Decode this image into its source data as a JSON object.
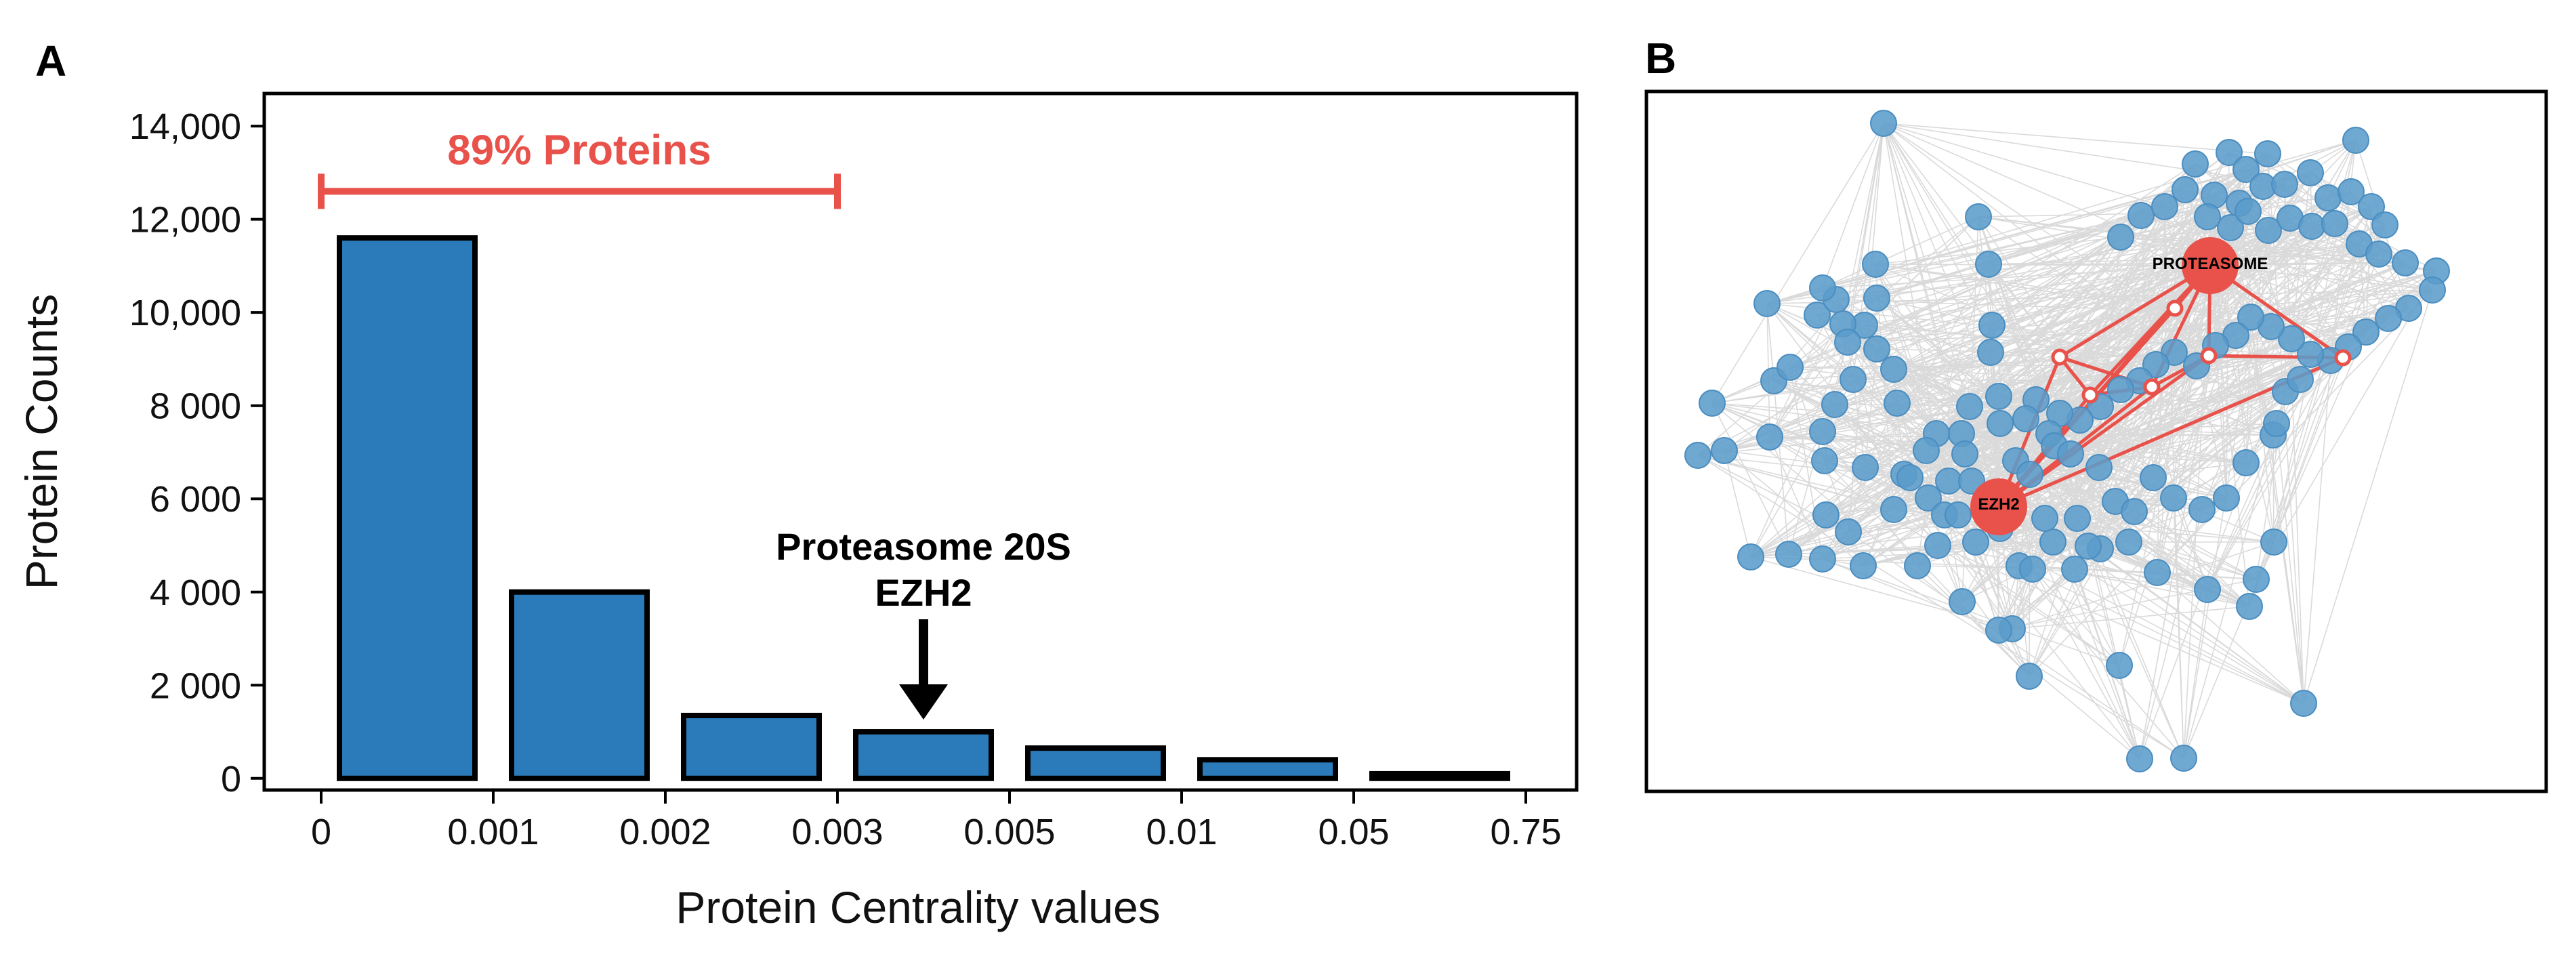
{
  "panels": {
    "a_label": "A",
    "b_label": "B"
  },
  "chart_data": {
    "type": "bar",
    "title": "",
    "xlabel": "Protein Centrality values",
    "ylabel": "Protein Counts",
    "categories": [
      "0-0.001",
      "0.001-0.002",
      "0.002-0.003",
      "0.003-0.005",
      "0.005-0.01",
      "0.01-0.05",
      "0.05-0.75"
    ],
    "values": [
      11600,
      4000,
      1350,
      1000,
      650,
      400,
      100
    ],
    "ylim": [
      -250,
      14700
    ],
    "yticks": [
      0,
      2000,
      4000,
      6000,
      8000,
      10000,
      12000,
      14000
    ],
    "ytick_labels": [
      "0",
      "2 000",
      "4 000",
      "6 000",
      "8 000",
      "10,000",
      "12,000",
      "14,000"
    ],
    "xtick_labels": [
      "0",
      "0.001",
      "0.002",
      "0.003",
      "0.005",
      "0.01",
      "0.05",
      "0.75"
    ],
    "bar_color": "#2b7bba",
    "grid": false,
    "annotations": {
      "bracket_label": "89% Proteins",
      "bracket_color": "#e8524a",
      "bracket_from_tick": 0,
      "bracket_to_tick": 3,
      "bracket_value": 12600,
      "arrow_line1": "Proteasome 20S",
      "arrow_line2": "EZH2",
      "arrow_bar_index": 3
    }
  },
  "network": {
    "hub1_label": "PROTEASOME",
    "hub2_label": "EZH2",
    "node_color": "#5b9ccb",
    "hub_color": "#e8524a",
    "edge_color": "#d4d4d4"
  }
}
